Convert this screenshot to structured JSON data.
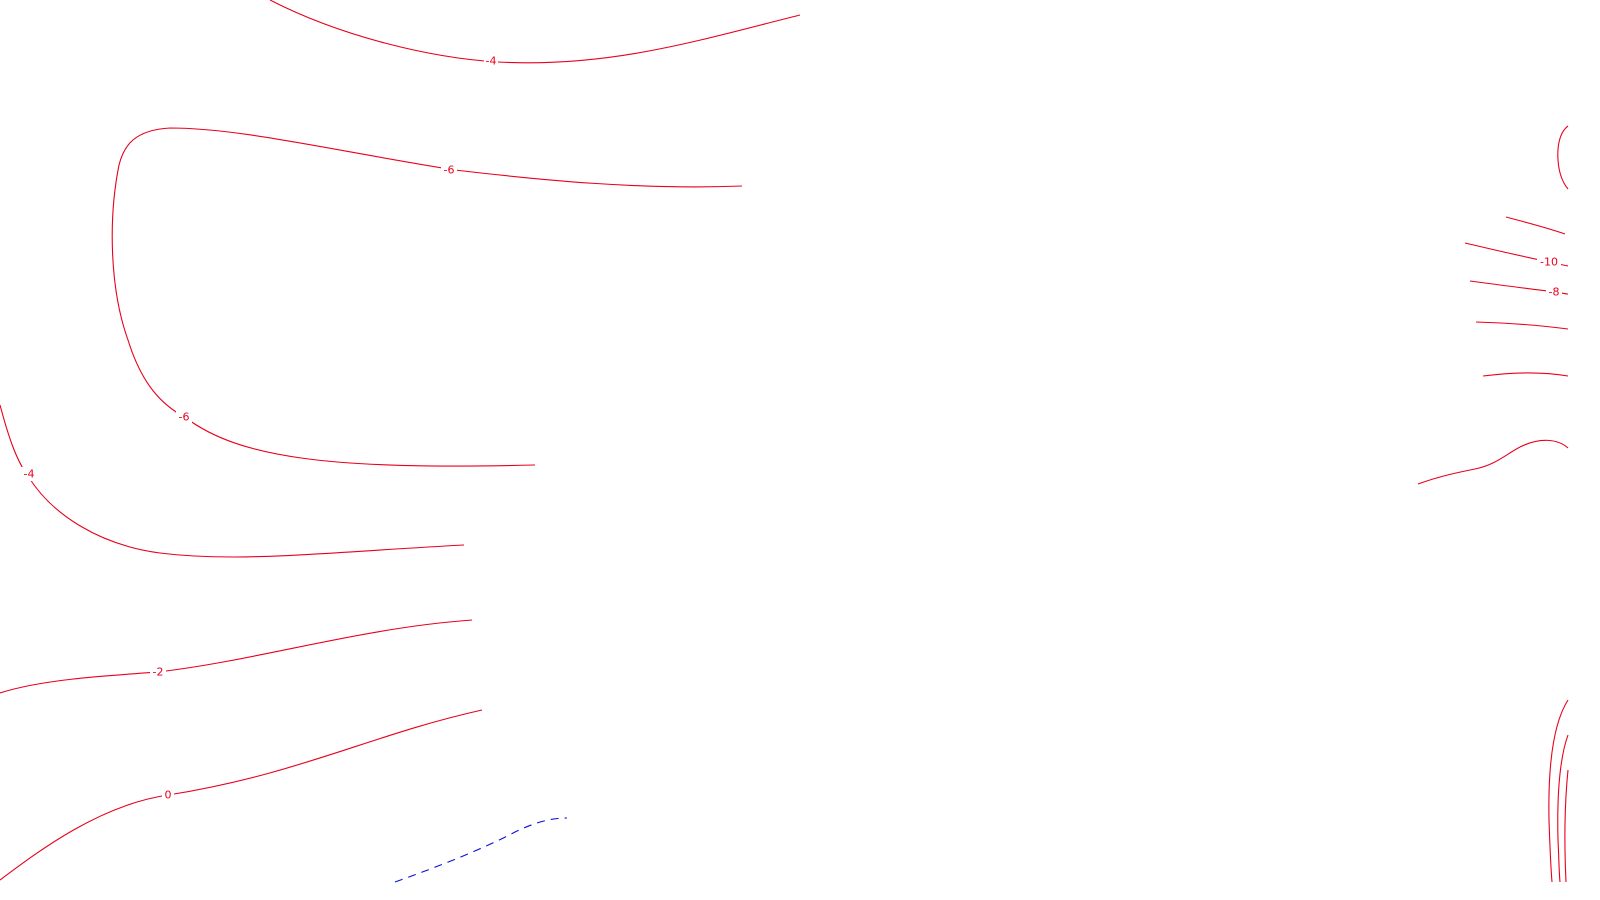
{
  "colors": {
    "background": "#ffffff",
    "contour_primary": "#e8001c",
    "contour_dashed": "#0a10d8"
  },
  "contour_labels": {
    "top_minus_4": "-4",
    "upper_minus_6": "-6",
    "left_minus_6": "-6",
    "left_minus_4": "-4",
    "minus_2": "-2",
    "zero": "0",
    "right_minus_10": "-10",
    "right_minus_8": "-8"
  }
}
